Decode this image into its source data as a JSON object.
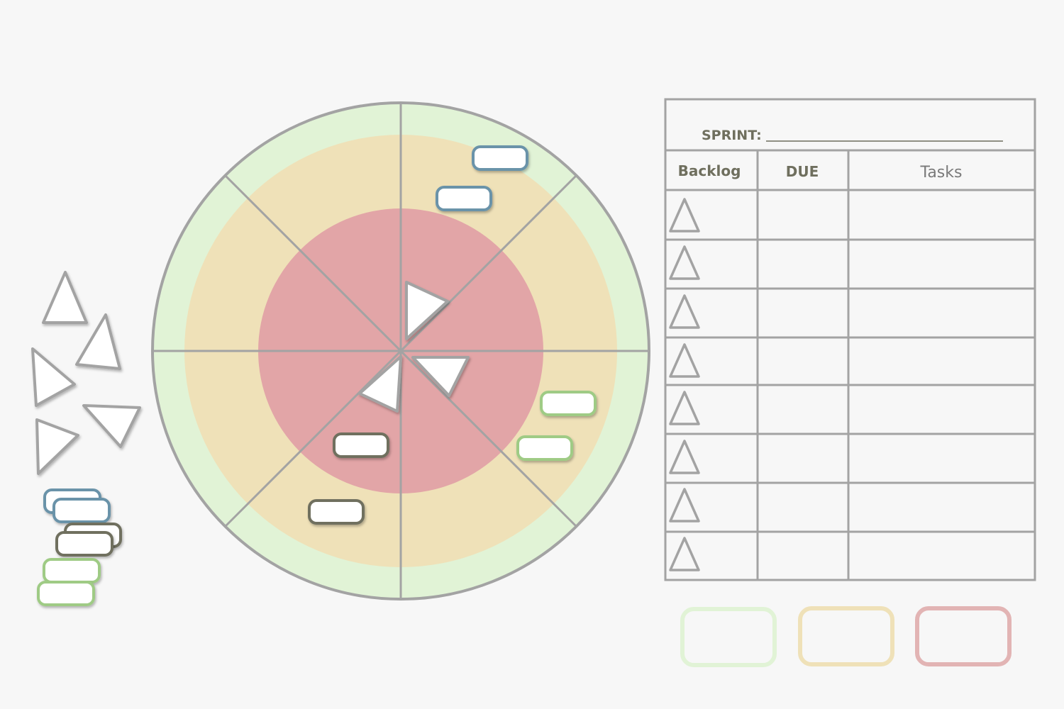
{
  "sprint_board": {
    "sprint_label": "SPRINT:",
    "sprint_value": "",
    "columns": {
      "backlog": "Backlog",
      "due": "DUE",
      "tasks": "Tasks"
    },
    "row_count": 8
  },
  "colors": {
    "background": "#f7f7f7",
    "outer_ring": "#e1f3d6",
    "middle_ring": "#efe1b8",
    "inner_core": "#e2a5a7",
    "grid_line": "#a3a3a3",
    "blue_token": "#6b93a9",
    "dark_token": "#6f6f5e",
    "green_token": "#9fcb85",
    "legend_green": "#e1f3d6",
    "legend_yellow": "#efe1b8",
    "legend_red": "#e2b4b4"
  },
  "token_types": [
    "blue-tag",
    "dark-tag",
    "green-tag",
    "triangle-marker"
  ],
  "legend": [
    "low-priority-green",
    "medium-priority-yellow",
    "high-priority-red"
  ]
}
